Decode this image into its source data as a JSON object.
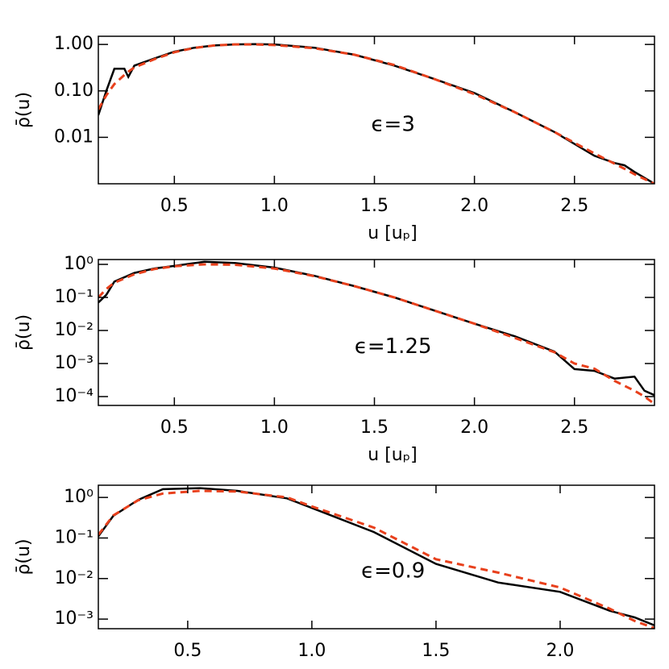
{
  "chart_data": [
    {
      "type": "line",
      "yscale": "log",
      "grid": false,
      "annotation": "ϵ=3",
      "ylabel": "ρ̄(u)",
      "xlabel": "u [uₚ]",
      "xlim": [
        0.12,
        2.9
      ],
      "ylim": [
        0.001,
        1.5
      ],
      "xticks": [
        0.5,
        {
          "value": 1,
          "label": "1.0"
        },
        1.5,
        {
          "value": 2,
          "label": "2.0"
        },
        2.5
      ],
      "yticks": [
        {
          "value": 1,
          "label": "1.00"
        },
        {
          "value": 0.1,
          "label": "0.10"
        },
        0.01
      ],
      "x": [
        0.12,
        0.16,
        0.2,
        0.25,
        0.27,
        0.3,
        0.4,
        0.5,
        0.6,
        0.7,
        0.8,
        0.9,
        1.0,
        1.2,
        1.4,
        1.6,
        1.8,
        2.0,
        2.2,
        2.4,
        2.6,
        2.7,
        2.75,
        2.8,
        2.9
      ],
      "series": [
        {
          "color": "#000000",
          "dashed": false,
          "values": [
            0.03,
            0.1,
            0.3,
            0.3,
            0.2,
            0.35,
            0.5,
            0.7,
            0.85,
            0.95,
            1.0,
            1.02,
            1.0,
            0.85,
            0.6,
            0.35,
            0.18,
            0.09,
            0.035,
            0.013,
            0.004,
            0.0028,
            0.0025,
            0.0018,
            0.001
          ]
        },
        {
          "color": "#e8401c",
          "dashed": true,
          "values": [
            0.04,
            0.08,
            0.14,
            0.22,
            0.26,
            0.32,
            0.48,
            0.68,
            0.84,
            0.95,
            1.0,
            1.0,
            0.97,
            0.83,
            0.6,
            0.36,
            0.18,
            0.085,
            0.035,
            0.013,
            0.0045,
            0.0027,
            0.0021,
            0.0016,
            0.001
          ]
        }
      ]
    },
    {
      "type": "line",
      "yscale": "log",
      "grid": false,
      "annotation": "ϵ=1.25",
      "ylabel": "ρ̄(u)",
      "xlabel": "u [uₚ]",
      "xlim": [
        0.12,
        2.9
      ],
      "ylim": [
        5.4e-05,
        1.4
      ],
      "xticks": [
        0.5,
        {
          "value": 1,
          "label": "1.0"
        },
        1.5,
        {
          "value": 2,
          "label": "2.0"
        },
        2.5
      ],
      "yticks": [
        {
          "value": 1,
          "label": "10⁰"
        },
        {
          "value": 0.1,
          "label": "10⁻¹"
        },
        {
          "value": 0.01,
          "label": "10⁻²"
        },
        {
          "value": 0.001,
          "label": "10⁻³"
        },
        {
          "value": 0.0001,
          "label": "10⁻⁴"
        }
      ],
      "x": [
        0.12,
        0.16,
        0.2,
        0.3,
        0.4,
        0.5,
        0.65,
        0.8,
        1.0,
        1.2,
        1.4,
        1.6,
        1.8,
        2.0,
        2.2,
        2.4,
        2.5,
        2.6,
        2.7,
        2.8,
        2.85,
        2.9
      ],
      "series": [
        {
          "color": "#000000",
          "dashed": false,
          "values": [
            0.07,
            0.12,
            0.3,
            0.55,
            0.75,
            0.9,
            1.2,
            1.1,
            0.8,
            0.45,
            0.22,
            0.1,
            0.04,
            0.016,
            0.0067,
            0.0023,
            0.00068,
            0.0006,
            0.00035,
            0.0004,
            0.00015,
            0.00011
          ]
        },
        {
          "color": "#e8401c",
          "dashed": true,
          "values": [
            0.1,
            0.18,
            0.28,
            0.5,
            0.72,
            0.88,
            1.0,
            0.98,
            0.75,
            0.44,
            0.22,
            0.1,
            0.04,
            0.016,
            0.006,
            0.0022,
            0.001,
            0.0007,
            0.0003,
            0.00015,
            0.0001,
            6e-05
          ]
        }
      ]
    },
    {
      "type": "line",
      "yscale": "log",
      "grid": false,
      "annotation": "ϵ=0.9",
      "ylabel": "ρ̄(u)",
      "xlim": [
        0.14,
        2.38
      ],
      "ylim": [
        0.00058,
        2
      ],
      "xticks": [
        0.5,
        {
          "value": 1,
          "label": "1.0"
        },
        1.5,
        {
          "value": 2,
          "label": "2.0"
        }
      ],
      "yticks": [
        {
          "value": 1,
          "label": "10⁰"
        },
        {
          "value": 0.1,
          "label": "10⁻¹"
        },
        {
          "value": 0.01,
          "label": "10⁻²"
        },
        {
          "value": 0.001,
          "label": "10⁻³"
        }
      ],
      "x": [
        0.14,
        0.2,
        0.3,
        0.4,
        0.55,
        0.7,
        0.9,
        1.0,
        1.25,
        1.5,
        1.75,
        2.0,
        2.2,
        2.3,
        2.38
      ],
      "series": [
        {
          "color": "#000000",
          "dashed": false,
          "values": [
            0.11,
            0.35,
            0.87,
            1.6,
            1.7,
            1.45,
            0.95,
            0.55,
            0.14,
            0.023,
            0.008,
            0.0047,
            0.0016,
            0.0011,
            0.0007
          ]
        },
        {
          "color": "#e8401c",
          "dashed": true,
          "values": [
            0.12,
            0.36,
            0.85,
            1.25,
            1.45,
            1.4,
            1.0,
            0.6,
            0.18,
            0.03,
            0.014,
            0.006,
            0.0018,
            0.0009,
            0.0006
          ]
        }
      ]
    }
  ]
}
